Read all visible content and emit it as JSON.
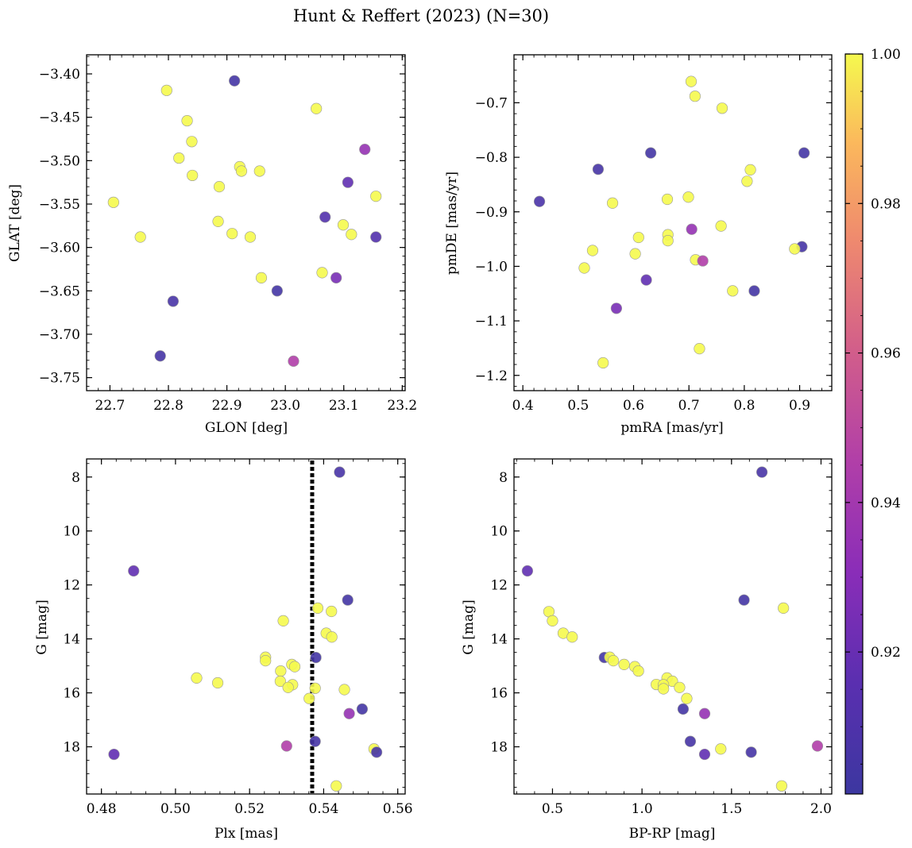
{
  "figure": {
    "title": "Hunt & Reffert (2023) (N=30)"
  },
  "colorbar": {
    "ticks": [
      0.92,
      0.94,
      0.96,
      0.98,
      1.0
    ],
    "tick_labels": [
      "0.92",
      "0.94",
      "0.96",
      "0.98",
      "1.00"
    ],
    "range": [
      0.901,
      1.0
    ],
    "colormap": "plasma"
  },
  "chart_data": [
    {
      "type": "scatter",
      "id": "glon-glat",
      "xlabel": "GLON [deg]",
      "ylabel": "GLAT [deg]",
      "xlim": [
        22.66,
        23.205
      ],
      "ylim": [
        -3.765,
        -3.378
      ],
      "yinverted": false,
      "xticks": [
        22.7,
        22.8,
        22.9,
        23.0,
        23.1,
        23.2
      ],
      "xtick_labels": [
        "22.7",
        "22.8",
        "22.9",
        "23.0",
        "23.1",
        "23.2"
      ],
      "yticks": [
        -3.75,
        -3.7,
        -3.65,
        -3.6,
        -3.55,
        -3.5,
        -3.45,
        -3.4
      ],
      "ytick_labels": [
        "−3.75",
        "−3.70",
        "−3.65",
        "−3.60",
        "−3.55",
        "−3.50",
        "−3.45",
        "−3.40"
      ],
      "points": [
        {
          "x": 22.797,
          "y": -3.419,
          "c": 1.0
        },
        {
          "x": 22.913,
          "y": -3.408,
          "c": 0.905
        },
        {
          "x": 22.832,
          "y": -3.454,
          "c": 1.0
        },
        {
          "x": 22.84,
          "y": -3.478,
          "c": 1.0
        },
        {
          "x": 22.818,
          "y": -3.497,
          "c": 1.0
        },
        {
          "x": 22.841,
          "y": -3.517,
          "c": 1.0
        },
        {
          "x": 22.922,
          "y": -3.507,
          "c": 1.0
        },
        {
          "x": 22.925,
          "y": -3.512,
          "c": 1.0
        },
        {
          "x": 22.956,
          "y": -3.512,
          "c": 1.0
        },
        {
          "x": 22.887,
          "y": -3.53,
          "c": 1.0
        },
        {
          "x": 22.706,
          "y": -3.548,
          "c": 1.0
        },
        {
          "x": 22.885,
          "y": -3.57,
          "c": 1.0
        },
        {
          "x": 22.909,
          "y": -3.584,
          "c": 1.0
        },
        {
          "x": 22.94,
          "y": -3.588,
          "c": 1.0
        },
        {
          "x": 22.752,
          "y": -3.588,
          "c": 1.0
        },
        {
          "x": 22.959,
          "y": -3.635,
          "c": 1.0
        },
        {
          "x": 22.986,
          "y": -3.65,
          "c": 0.905
        },
        {
          "x": 22.808,
          "y": -3.662,
          "c": 0.907
        },
        {
          "x": 22.786,
          "y": -3.725,
          "c": 0.906
        },
        {
          "x": 23.014,
          "y": -3.731,
          "c": 0.945
        },
        {
          "x": 23.053,
          "y": -3.44,
          "c": 1.0
        },
        {
          "x": 23.136,
          "y": -3.487,
          "c": 0.935
        },
        {
          "x": 23.107,
          "y": -3.525,
          "c": 0.918
        },
        {
          "x": 23.155,
          "y": -3.541,
          "c": 1.0
        },
        {
          "x": 23.068,
          "y": -3.565,
          "c": 0.912
        },
        {
          "x": 23.099,
          "y": -3.574,
          "c": 1.0
        },
        {
          "x": 23.113,
          "y": -3.585,
          "c": 1.0
        },
        {
          "x": 23.155,
          "y": -3.588,
          "c": 0.912
        },
        {
          "x": 23.063,
          "y": -3.629,
          "c": 1.0
        },
        {
          "x": 23.087,
          "y": -3.635,
          "c": 0.925
        }
      ]
    },
    {
      "type": "scatter",
      "id": "pmra-pmde",
      "xlabel": "pmRA [mas/yr]",
      "ylabel": "pmDE [mas/yr]",
      "xlim": [
        0.384,
        0.958
      ],
      "ylim": [
        -1.228,
        -0.612
      ],
      "yinverted": false,
      "xticks": [
        0.4,
        0.5,
        0.6,
        0.7,
        0.8,
        0.9
      ],
      "xtick_labels": [
        "0.4",
        "0.5",
        "0.6",
        "0.7",
        "0.8",
        "0.9"
      ],
      "yticks": [
        -1.2,
        -1.1,
        -1.0,
        -0.9,
        -0.8,
        -0.7
      ],
      "ytick_labels": [
        "−1.2",
        "−1.1",
        "−1.0",
        "−0.9",
        "−0.8",
        "−0.7"
      ],
      "points": [
        {
          "x": 0.704,
          "y": -0.661,
          "c": 1.0
        },
        {
          "x": 0.711,
          "y": -0.688,
          "c": 1.0
        },
        {
          "x": 0.76,
          "y": -0.71,
          "c": 1.0
        },
        {
          "x": 0.631,
          "y": -0.792,
          "c": 0.905
        },
        {
          "x": 0.908,
          "y": -0.792,
          "c": 0.905
        },
        {
          "x": 0.536,
          "y": -0.822,
          "c": 0.906
        },
        {
          "x": 0.811,
          "y": -0.823,
          "c": 1.0
        },
        {
          "x": 0.805,
          "y": -0.844,
          "c": 1.0
        },
        {
          "x": 0.699,
          "y": -0.873,
          "c": 1.0
        },
        {
          "x": 0.661,
          "y": -0.877,
          "c": 1.0
        },
        {
          "x": 0.43,
          "y": -0.881,
          "c": 0.908
        },
        {
          "x": 0.562,
          "y": -0.884,
          "c": 1.0
        },
        {
          "x": 0.758,
          "y": -0.926,
          "c": 1.0
        },
        {
          "x": 0.705,
          "y": -0.932,
          "c": 0.935
        },
        {
          "x": 0.662,
          "y": -0.942,
          "c": 1.0
        },
        {
          "x": 0.609,
          "y": -0.947,
          "c": 1.0
        },
        {
          "x": 0.662,
          "y": -0.953,
          "c": 1.0
        },
        {
          "x": 0.904,
          "y": -0.964,
          "c": 0.906
        },
        {
          "x": 0.891,
          "y": -0.968,
          "c": 1.0
        },
        {
          "x": 0.526,
          "y": -0.971,
          "c": 1.0
        },
        {
          "x": 0.603,
          "y": -0.977,
          "c": 1.0
        },
        {
          "x": 0.712,
          "y": -0.988,
          "c": 1.0
        },
        {
          "x": 0.725,
          "y": -0.99,
          "c": 0.945
        },
        {
          "x": 0.511,
          "y": -1.003,
          "c": 1.0
        },
        {
          "x": 0.623,
          "y": -1.025,
          "c": 0.918
        },
        {
          "x": 0.779,
          "y": -1.045,
          "c": 1.0
        },
        {
          "x": 0.818,
          "y": -1.045,
          "c": 0.905
        },
        {
          "x": 0.569,
          "y": -1.077,
          "c": 0.925
        },
        {
          "x": 0.719,
          "y": -1.151,
          "c": 1.0
        },
        {
          "x": 0.545,
          "y": -1.177,
          "c": 1.0
        }
      ]
    },
    {
      "type": "scatter",
      "id": "plx-g",
      "xlabel": "Plx [mas]",
      "ylabel": "G [mag]",
      "xlim": [
        0.476,
        0.562
      ],
      "ylim": [
        19.75,
        7.33
      ],
      "yinverted": true,
      "vline": 0.5369,
      "xticks": [
        0.48,
        0.5,
        0.52,
        0.54,
        0.56
      ],
      "xtick_labels": [
        "0.48",
        "0.50",
        "0.52",
        "0.54",
        "0.56"
      ],
      "yticks": [
        8,
        10,
        12,
        14,
        16,
        18
      ],
      "ytick_labels": [
        "8",
        "10",
        "12",
        "14",
        "16",
        "18"
      ],
      "points": [
        {
          "x": 0.5443,
          "y": 7.82,
          "c": 0.907
        },
        {
          "x": 0.4887,
          "y": 11.48,
          "c": 0.918
        },
        {
          "x": 0.5465,
          "y": 12.56,
          "c": 0.905
        },
        {
          "x": 0.5384,
          "y": 12.86,
          "c": 1.0
        },
        {
          "x": 0.5421,
          "y": 12.98,
          "c": 1.0
        },
        {
          "x": 0.5291,
          "y": 13.33,
          "c": 1.0
        },
        {
          "x": 0.5407,
          "y": 13.79,
          "c": 1.0
        },
        {
          "x": 0.5422,
          "y": 13.93,
          "c": 1.0
        },
        {
          "x": 0.5379,
          "y": 14.69,
          "c": 0.905
        },
        {
          "x": 0.5243,
          "y": 14.68,
          "c": 1.0
        },
        {
          "x": 0.5243,
          "y": 14.81,
          "c": 1.0
        },
        {
          "x": 0.5314,
          "y": 14.95,
          "c": 1.0
        },
        {
          "x": 0.5322,
          "y": 15.03,
          "c": 1.0
        },
        {
          "x": 0.5284,
          "y": 15.19,
          "c": 1.0
        },
        {
          "x": 0.5057,
          "y": 15.45,
          "c": 1.0
        },
        {
          "x": 0.5283,
          "y": 15.57,
          "c": 1.0
        },
        {
          "x": 0.5114,
          "y": 15.63,
          "c": 1.0
        },
        {
          "x": 0.5316,
          "y": 15.7,
          "c": 1.0
        },
        {
          "x": 0.5304,
          "y": 15.8,
          "c": 1.0
        },
        {
          "x": 0.5377,
          "y": 15.83,
          "c": 1.0
        },
        {
          "x": 0.5456,
          "y": 15.88,
          "c": 1.0
        },
        {
          "x": 0.5361,
          "y": 16.21,
          "c": 1.0
        },
        {
          "x": 0.5504,
          "y": 16.6,
          "c": 0.905
        },
        {
          "x": 0.5469,
          "y": 16.77,
          "c": 0.935
        },
        {
          "x": 0.5377,
          "y": 17.8,
          "c": 0.906
        },
        {
          "x": 0.53,
          "y": 17.97,
          "c": 0.945
        },
        {
          "x": 0.5536,
          "y": 18.08,
          "c": 1.0
        },
        {
          "x": 0.5543,
          "y": 18.2,
          "c": 0.906
        },
        {
          "x": 0.4834,
          "y": 18.28,
          "c": 0.918
        },
        {
          "x": 0.5434,
          "y": 19.45,
          "c": 1.0
        }
      ]
    },
    {
      "type": "scatter",
      "id": "bprp-g",
      "xlabel": "BP-RP [mag]",
      "ylabel": "G [mag]",
      "xlim": [
        0.285,
        2.06
      ],
      "ylim": [
        19.75,
        7.33
      ],
      "yinverted": true,
      "xticks": [
        0.5,
        1.0,
        1.5,
        2.0
      ],
      "xtick_labels": [
        "0.5",
        "1.0",
        "1.5",
        "2.0"
      ],
      "yticks": [
        8,
        10,
        12,
        14,
        16,
        18
      ],
      "ytick_labels": [
        "8",
        "10",
        "12",
        "14",
        "16",
        "18"
      ],
      "points": [
        {
          "x": 1.67,
          "y": 7.82,
          "c": 0.907
        },
        {
          "x": 0.36,
          "y": 11.48,
          "c": 0.918
        },
        {
          "x": 1.57,
          "y": 12.56,
          "c": 0.905
        },
        {
          "x": 1.79,
          "y": 12.86,
          "c": 1.0
        },
        {
          "x": 0.48,
          "y": 12.99,
          "c": 1.0
        },
        {
          "x": 0.5,
          "y": 13.33,
          "c": 1.0
        },
        {
          "x": 0.56,
          "y": 13.79,
          "c": 1.0
        },
        {
          "x": 0.61,
          "y": 13.93,
          "c": 1.0
        },
        {
          "x": 0.79,
          "y": 14.69,
          "c": 0.905
        },
        {
          "x": 0.82,
          "y": 14.68,
          "c": 1.0
        },
        {
          "x": 0.84,
          "y": 14.81,
          "c": 1.0
        },
        {
          "x": 0.9,
          "y": 14.95,
          "c": 1.0
        },
        {
          "x": 0.96,
          "y": 15.03,
          "c": 1.0
        },
        {
          "x": 0.98,
          "y": 15.19,
          "c": 1.0
        },
        {
          "x": 1.14,
          "y": 15.45,
          "c": 1.0
        },
        {
          "x": 1.17,
          "y": 15.57,
          "c": 1.0
        },
        {
          "x": 1.08,
          "y": 15.69,
          "c": 1.0
        },
        {
          "x": 1.12,
          "y": 15.7,
          "c": 1.0
        },
        {
          "x": 1.21,
          "y": 15.8,
          "c": 1.0
        },
        {
          "x": 1.12,
          "y": 15.85,
          "c": 1.0
        },
        {
          "x": 1.25,
          "y": 16.21,
          "c": 1.0
        },
        {
          "x": 1.23,
          "y": 16.6,
          "c": 0.905
        },
        {
          "x": 1.35,
          "y": 16.77,
          "c": 0.935
        },
        {
          "x": 1.27,
          "y": 17.8,
          "c": 0.906
        },
        {
          "x": 1.98,
          "y": 17.97,
          "c": 0.945
        },
        {
          "x": 1.44,
          "y": 18.08,
          "c": 1.0
        },
        {
          "x": 1.61,
          "y": 18.2,
          "c": 0.906
        },
        {
          "x": 1.35,
          "y": 18.28,
          "c": 0.918
        },
        {
          "x": 1.78,
          "y": 19.45,
          "c": 1.0
        }
      ]
    }
  ]
}
